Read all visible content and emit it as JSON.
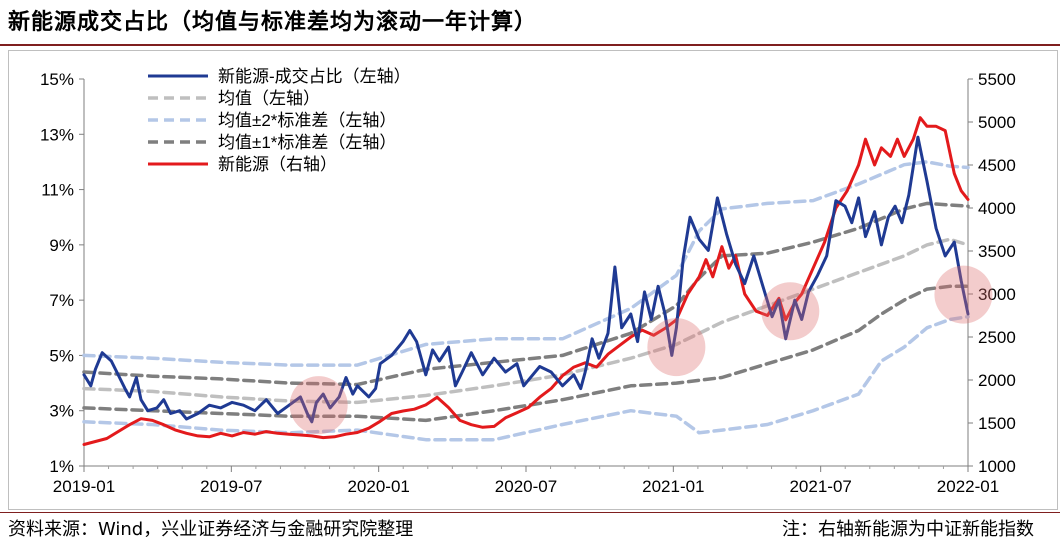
{
  "title": "新能源成交占比（均值与标准差均为滚动一年计算）",
  "source": "资料来源：Wind，兴业证券经济与金融研究院整理",
  "note": "注：右轴新能源为中证新能指数",
  "chart_data": {
    "type": "line",
    "title": "新能源成交占比（均值与标准差均为滚动一年计算）",
    "x_ticks": [
      "2019-01",
      "2019-07",
      "2020-01",
      "2020-07",
      "2021-01",
      "2021-07",
      "2022-01"
    ],
    "x_range": [
      0,
      37
    ],
    "y_left_range": [
      1,
      15
    ],
    "y_left_ticks": [
      "1%",
      "3%",
      "5%",
      "7%",
      "9%",
      "11%",
      "13%",
      "15%"
    ],
    "y_right_range": [
      1000,
      5500
    ],
    "y_right_ticks": [
      "1000",
      "1500",
      "2000",
      "2500",
      "3000",
      "3500",
      "4000",
      "4500",
      "5000",
      "5500"
    ],
    "legend_position": "top-left",
    "series": [
      {
        "name": "新能源-成交占比（左轴）",
        "axis": "left",
        "color": "#1f3a93",
        "style": "solid",
        "points": [
          [
            0,
            4.3
          ],
          [
            0.3,
            3.9
          ],
          [
            0.5,
            4.5
          ],
          [
            0.8,
            5.1
          ],
          [
            1.2,
            4.8
          ],
          [
            1.5,
            4.3
          ],
          [
            1.8,
            3.8
          ],
          [
            2.0,
            3.5
          ],
          [
            2.3,
            4.2
          ],
          [
            2.5,
            3.4
          ],
          [
            2.8,
            3.0
          ],
          [
            3.2,
            3.1
          ],
          [
            3.5,
            3.4
          ],
          [
            3.8,
            2.9
          ],
          [
            4.2,
            3.0
          ],
          [
            4.5,
            2.7
          ],
          [
            5,
            2.9
          ],
          [
            5.5,
            3.2
          ],
          [
            6,
            3.1
          ],
          [
            6.5,
            3.3
          ],
          [
            7,
            3.2
          ],
          [
            7.5,
            3.0
          ],
          [
            8,
            3.4
          ],
          [
            8.5,
            2.9
          ],
          [
            9,
            3.2
          ],
          [
            9.5,
            3.5
          ],
          [
            9.8,
            2.9
          ],
          [
            10,
            2.6
          ],
          [
            10.2,
            3.3
          ],
          [
            10.5,
            3.6
          ],
          [
            10.8,
            3.1
          ],
          [
            11.2,
            3.5
          ],
          [
            11.5,
            4.2
          ],
          [
            11.8,
            3.6
          ],
          [
            12,
            3.9
          ],
          [
            12.5,
            3.5
          ],
          [
            12.8,
            3.8
          ],
          [
            13,
            4.7
          ],
          [
            13.5,
            5.0
          ],
          [
            14,
            5.5
          ],
          [
            14.3,
            5.9
          ],
          [
            14.6,
            5.5
          ],
          [
            15,
            4.3
          ],
          [
            15.3,
            5.2
          ],
          [
            15.6,
            4.8
          ],
          [
            16,
            5.3
          ],
          [
            16.3,
            3.9
          ],
          [
            16.6,
            4.4
          ],
          [
            17,
            5.1
          ],
          [
            17.5,
            4.3
          ],
          [
            18,
            4.9
          ],
          [
            18.5,
            4.4
          ],
          [
            19,
            4.7
          ],
          [
            19.3,
            3.9
          ],
          [
            19.7,
            4.3
          ],
          [
            20,
            4.6
          ],
          [
            20.5,
            4.4
          ],
          [
            21,
            3.9
          ],
          [
            21.5,
            4.3
          ],
          [
            21.8,
            3.8
          ],
          [
            22,
            4.4
          ],
          [
            22.3,
            5.6
          ],
          [
            22.6,
            4.9
          ],
          [
            23,
            5.8
          ],
          [
            23.3,
            8.2
          ],
          [
            23.6,
            6.0
          ],
          [
            24,
            6.5
          ],
          [
            24.3,
            5.5
          ],
          [
            24.6,
            7.3
          ],
          [
            24.9,
            6.3
          ],
          [
            25.2,
            7.5
          ],
          [
            25.5,
            6.5
          ],
          [
            25.8,
            5.0
          ],
          [
            26,
            6.0
          ],
          [
            26.3,
            8.5
          ],
          [
            26.6,
            10.0
          ],
          [
            27,
            9.2
          ],
          [
            27.4,
            8.8
          ],
          [
            27.8,
            10.7
          ],
          [
            28.2,
            9.4
          ],
          [
            28.6,
            8.3
          ],
          [
            29,
            7.6
          ],
          [
            29.4,
            8.6
          ],
          [
            29.8,
            7.5
          ],
          [
            30.2,
            6.4
          ],
          [
            30.5,
            7.0
          ],
          [
            30.8,
            5.6
          ],
          [
            31.2,
            7.0
          ],
          [
            31.5,
            6.3
          ],
          [
            31.8,
            7.3
          ],
          [
            32.2,
            7.9
          ],
          [
            32.6,
            8.6
          ],
          [
            33,
            10.6
          ],
          [
            33.4,
            10.4
          ],
          [
            33.7,
            9.8
          ],
          [
            34,
            10.7
          ],
          [
            34.3,
            9.3
          ],
          [
            34.7,
            10.2
          ],
          [
            35,
            9.0
          ],
          [
            35.3,
            10.0
          ],
          [
            35.6,
            10.4
          ],
          [
            35.9,
            9.8
          ],
          [
            36.2,
            10.8
          ],
          [
            36.6,
            12.9
          ],
          [
            37,
            11.3
          ],
          [
            37.4,
            9.6
          ],
          [
            37.8,
            8.6
          ],
          [
            38.2,
            9.1
          ],
          [
            38.5,
            7.7
          ],
          [
            38.8,
            6.5
          ]
        ]
      },
      {
        "name": "均值（左轴）",
        "axis": "left",
        "color": "#bfbfbf",
        "style": "dashed",
        "points": [
          [
            0,
            3.8
          ],
          [
            3,
            3.7
          ],
          [
            6,
            3.5
          ],
          [
            9,
            3.35
          ],
          [
            12,
            3.3
          ],
          [
            15,
            3.55
          ],
          [
            18,
            3.9
          ],
          [
            21,
            4.3
          ],
          [
            24,
            4.9
          ],
          [
            26,
            5.4
          ],
          [
            28,
            6.2
          ],
          [
            30,
            6.8
          ],
          [
            32,
            7.4
          ],
          [
            34,
            8.0
          ],
          [
            36,
            8.6
          ],
          [
            37,
            9.0
          ],
          [
            38,
            9.2
          ],
          [
            38.8,
            9.0
          ]
        ]
      },
      {
        "name": "均值±2*标准差（左轴）",
        "axis": "left",
        "color": "#b4c7e7",
        "style": "dashed",
        "points": [
          [
            0,
            5.0
          ],
          [
            3,
            4.9
          ],
          [
            6,
            4.75
          ],
          [
            9,
            4.65
          ],
          [
            12,
            4.65
          ],
          [
            15,
            5.4
          ],
          [
            18,
            5.6
          ],
          [
            21,
            5.6
          ],
          [
            24,
            6.7
          ],
          [
            26,
            7.9
          ],
          [
            27,
            9.5
          ],
          [
            28,
            10.3
          ],
          [
            30,
            10.5
          ],
          [
            32,
            10.6
          ],
          [
            34,
            11.2
          ],
          [
            36,
            11.9
          ],
          [
            37,
            12.0
          ],
          [
            38,
            11.85
          ],
          [
            38.8,
            11.8
          ],
          [
            0,
            2.6
          ],
          [
            3,
            2.5
          ],
          [
            6,
            2.3
          ],
          [
            9,
            2.2
          ],
          [
            12,
            2.3
          ],
          [
            15,
            1.95
          ],
          [
            18,
            1.95
          ],
          [
            21,
            2.5
          ],
          [
            24,
            3.0
          ],
          [
            26,
            2.8
          ],
          [
            27,
            2.2
          ],
          [
            28,
            2.3
          ],
          [
            30,
            2.5
          ],
          [
            32,
            3.0
          ],
          [
            34,
            3.6
          ],
          [
            35,
            4.8
          ],
          [
            36,
            5.3
          ],
          [
            37,
            6.0
          ],
          [
            38,
            6.3
          ],
          [
            38.8,
            6.4
          ]
        ]
      },
      {
        "name": "均值±1*标准差（左轴）",
        "axis": "left",
        "color": "#7f7f7f",
        "style": "dashed",
        "points": [
          [
            0,
            4.4
          ],
          [
            3,
            4.25
          ],
          [
            6,
            4.15
          ],
          [
            9,
            4.0
          ],
          [
            12,
            3.95
          ],
          [
            15,
            4.5
          ],
          [
            18,
            4.75
          ],
          [
            21,
            5.0
          ],
          [
            24,
            5.8
          ],
          [
            26,
            6.8
          ],
          [
            27,
            7.8
          ],
          [
            28,
            8.6
          ],
          [
            30,
            8.7
          ],
          [
            32,
            9.1
          ],
          [
            34,
            9.6
          ],
          [
            36,
            10.3
          ],
          [
            37,
            10.5
          ],
          [
            38.8,
            10.4
          ],
          [
            0,
            3.1
          ],
          [
            3,
            3.0
          ],
          [
            6,
            2.9
          ],
          [
            9,
            2.8
          ],
          [
            12,
            2.8
          ],
          [
            15,
            2.65
          ],
          [
            18,
            3.0
          ],
          [
            21,
            3.4
          ],
          [
            24,
            3.9
          ],
          [
            26,
            4.0
          ],
          [
            27,
            4.1
          ],
          [
            28,
            4.2
          ],
          [
            30,
            4.7
          ],
          [
            32,
            5.2
          ],
          [
            34,
            5.9
          ],
          [
            35,
            6.5
          ],
          [
            36,
            7.0
          ],
          [
            37,
            7.4
          ],
          [
            38,
            7.5
          ],
          [
            38.8,
            7.5
          ]
        ]
      },
      {
        "name": "新能源（右轴）",
        "axis": "right",
        "color": "#e31a1c",
        "style": "solid",
        "points": [
          [
            0,
            1250
          ],
          [
            1,
            1320
          ],
          [
            2,
            1480
          ],
          [
            2.5,
            1550
          ],
          [
            3,
            1530
          ],
          [
            3.5,
            1480
          ],
          [
            4,
            1420
          ],
          [
            4.5,
            1380
          ],
          [
            5,
            1350
          ],
          [
            5.5,
            1340
          ],
          [
            6,
            1380
          ],
          [
            6.5,
            1350
          ],
          [
            7,
            1390
          ],
          [
            7.5,
            1370
          ],
          [
            8,
            1400
          ],
          [
            8.5,
            1380
          ],
          [
            9,
            1370
          ],
          [
            9.5,
            1360
          ],
          [
            10,
            1350
          ],
          [
            10.5,
            1330
          ],
          [
            11,
            1340
          ],
          [
            11.5,
            1370
          ],
          [
            12,
            1390
          ],
          [
            12.5,
            1440
          ],
          [
            13,
            1520
          ],
          [
            13.5,
            1610
          ],
          [
            14,
            1640
          ],
          [
            14.5,
            1660
          ],
          [
            15,
            1710
          ],
          [
            15.5,
            1800
          ],
          [
            16,
            1680
          ],
          [
            16.5,
            1530
          ],
          [
            17,
            1480
          ],
          [
            17.5,
            1450
          ],
          [
            18,
            1460
          ],
          [
            18.5,
            1560
          ],
          [
            19,
            1620
          ],
          [
            19.5,
            1680
          ],
          [
            20,
            1800
          ],
          [
            20.5,
            1900
          ],
          [
            21,
            2050
          ],
          [
            21.5,
            2150
          ],
          [
            22,
            2200
          ],
          [
            22.5,
            2150
          ],
          [
            23,
            2300
          ],
          [
            23.5,
            2400
          ],
          [
            24,
            2500
          ],
          [
            24.5,
            2580
          ],
          [
            25,
            2520
          ],
          [
            25.5,
            2600
          ],
          [
            26,
            2700
          ],
          [
            26.5,
            3000
          ],
          [
            27,
            3200
          ],
          [
            27.3,
            3400
          ],
          [
            27.6,
            3200
          ],
          [
            28,
            3550
          ],
          [
            28.3,
            3300
          ],
          [
            28.6,
            3450
          ],
          [
            29,
            3000
          ],
          [
            29.5,
            2800
          ],
          [
            30,
            2750
          ],
          [
            30.5,
            2950
          ],
          [
            30.8,
            2700
          ],
          [
            31.2,
            2900
          ],
          [
            31.5,
            3000
          ],
          [
            32,
            3300
          ],
          [
            32.5,
            3600
          ],
          [
            33,
            4000
          ],
          [
            33.5,
            4200
          ],
          [
            34,
            4500
          ],
          [
            34.3,
            4800
          ],
          [
            34.7,
            4500
          ],
          [
            35,
            4700
          ],
          [
            35.4,
            4600
          ],
          [
            35.7,
            4800
          ],
          [
            36,
            4600
          ],
          [
            36.4,
            4800
          ],
          [
            36.7,
            5050
          ],
          [
            37,
            4950
          ],
          [
            37.4,
            4950
          ],
          [
            37.8,
            4900
          ],
          [
            38.2,
            4400
          ],
          [
            38.5,
            4200
          ],
          [
            38.8,
            4100
          ]
        ]
      }
    ]
  }
}
